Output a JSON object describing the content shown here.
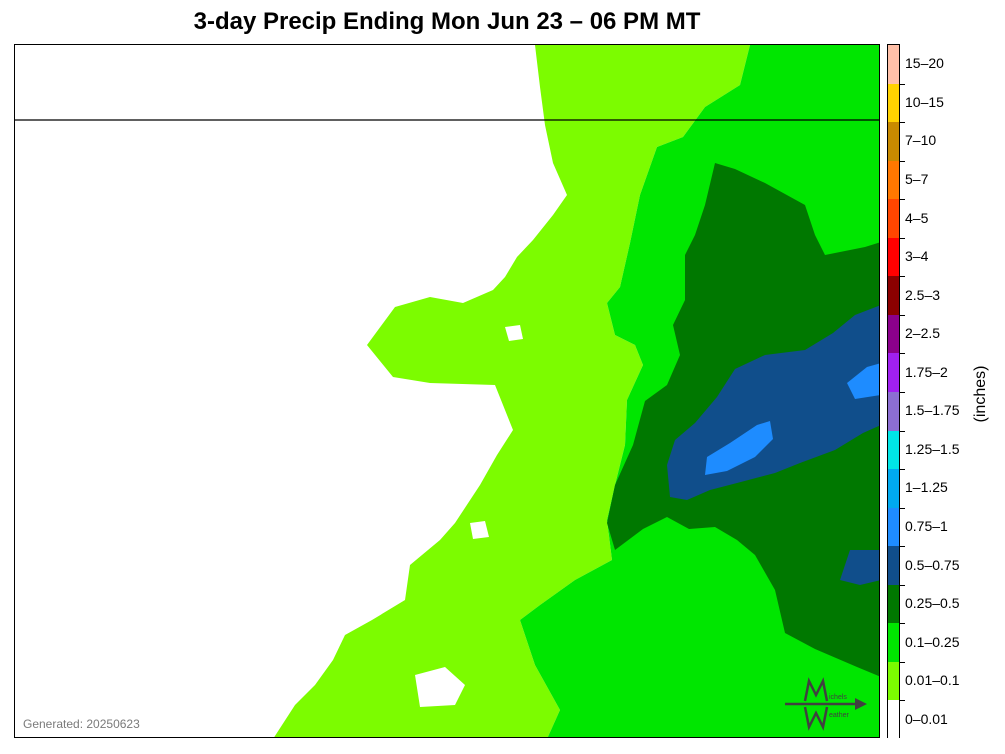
{
  "title": "3-day Precip Ending Mon Jun 23 – 06 PM MT",
  "generated": "Generated: 20250623",
  "units": "(inches)",
  "logo": {
    "top_text": "ichels",
    "bottom_text": "eather",
    "icon": "mw-logo-icon"
  },
  "legend": [
    {
      "label": "15–20",
      "color": "#ffc0a8"
    },
    {
      "label": "10–15",
      "color": "#ffd200"
    },
    {
      "label": "7–10",
      "color": "#c88a00"
    },
    {
      "label": "5–7",
      "color": "#ff7800"
    },
    {
      "label": "4–5",
      "color": "#ff4600"
    },
    {
      "label": "3–4",
      "color": "#ff0000"
    },
    {
      "label": "2.5–3",
      "color": "#8b0000"
    },
    {
      "label": "2–2.5",
      "color": "#8b008b"
    },
    {
      "label": "1.75–2",
      "color": "#a020f0"
    },
    {
      "label": "1.5–1.75",
      "color": "#8c6ed2"
    },
    {
      "label": "1.25–1.5",
      "color": "#00e6e6"
    },
    {
      "label": "1–1.25",
      "color": "#00aaf0"
    },
    {
      "label": "0.75–1",
      "color": "#1e8cff"
    },
    {
      "label": "0.5–0.75",
      "color": "#104e8b"
    },
    {
      "label": "0.25–0.5",
      "color": "#007800"
    },
    {
      "label": "0.1–0.25",
      "color": "#00e600"
    },
    {
      "label": "0.01–0.1",
      "color": "#7cfc00"
    },
    {
      "label": "0–0.01",
      "color": "#ffffff"
    }
  ],
  "colors": {
    "level_001": "#7cfc00",
    "level_01": "#00e600",
    "level_025": "#007800",
    "level_05": "#104e8b",
    "level_075": "#1e8cff",
    "border": "#000000"
  }
}
